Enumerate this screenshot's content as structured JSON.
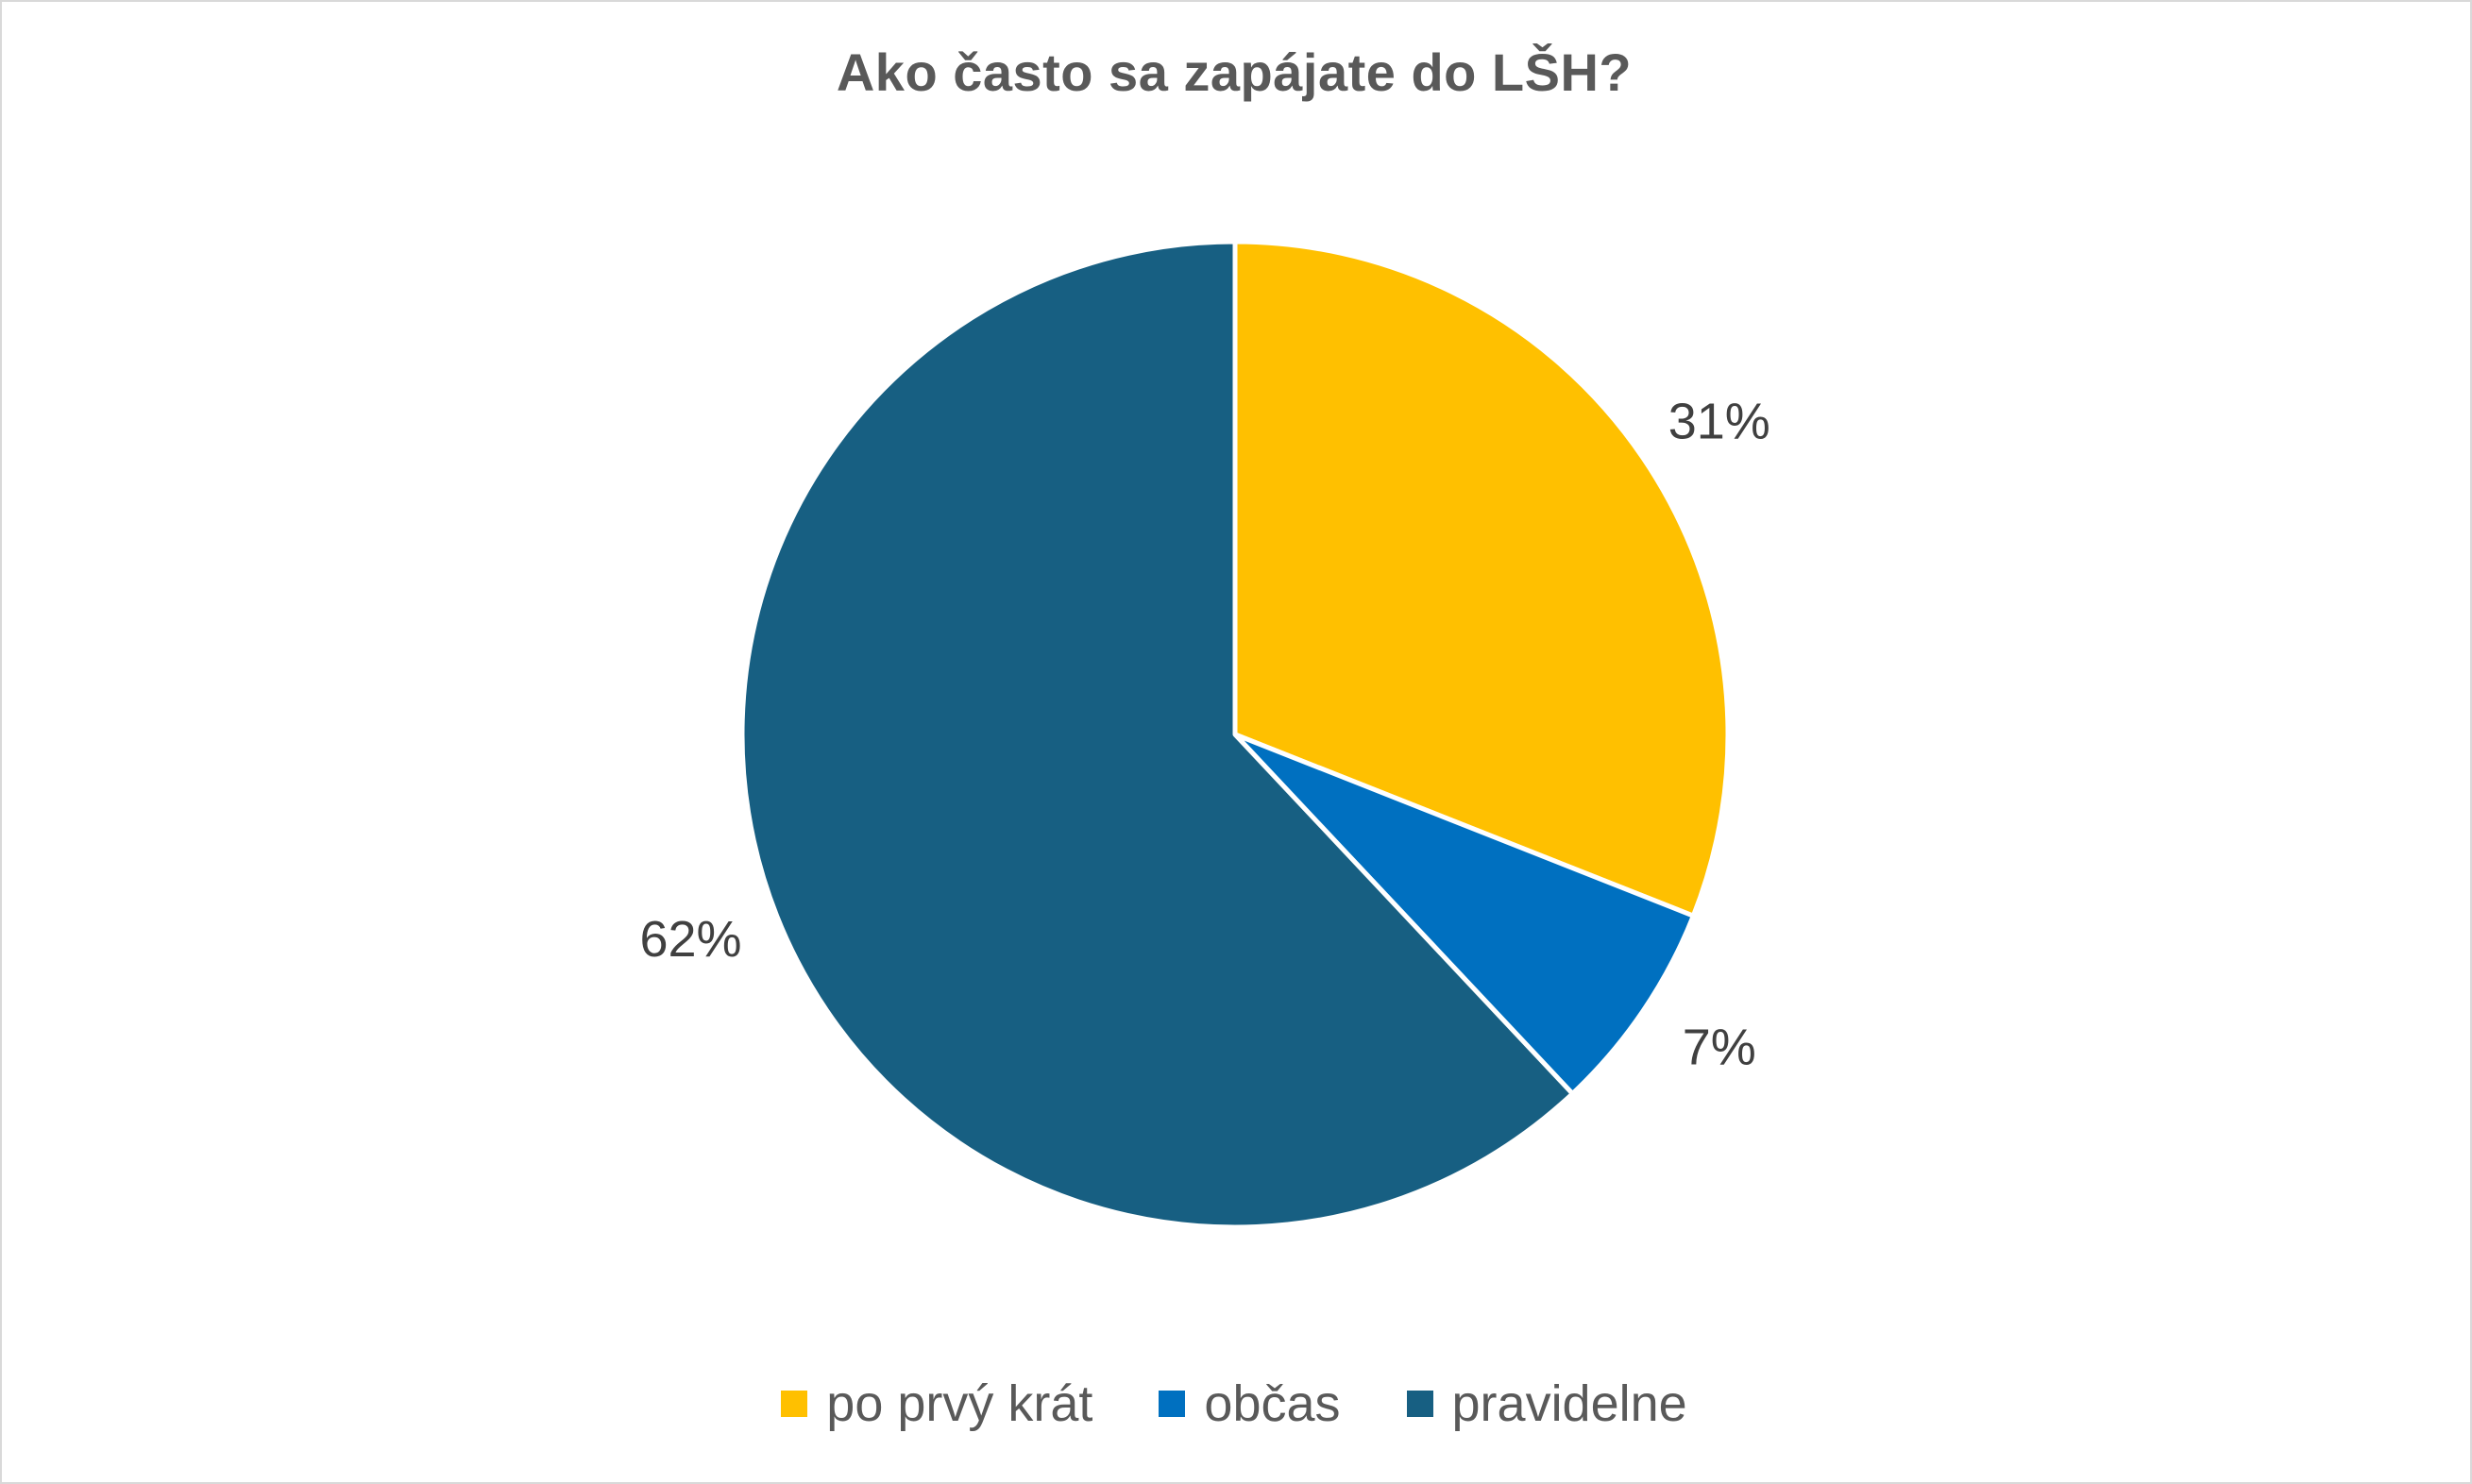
{
  "chart_data": {
    "type": "pie",
    "title": "Ako často sa zapájate do LŠH?",
    "categories": [
      "po prvý krát",
      "občas",
      "pravidelne"
    ],
    "values": [
      31,
      7,
      62
    ],
    "data_labels": [
      "31%",
      "7%",
      "62%"
    ],
    "colors": [
      "#ffc000",
      "#0070c0",
      "#175f82"
    ],
    "start_angle_deg": 0,
    "direction": "clockwise",
    "legend_position": "bottom"
  }
}
